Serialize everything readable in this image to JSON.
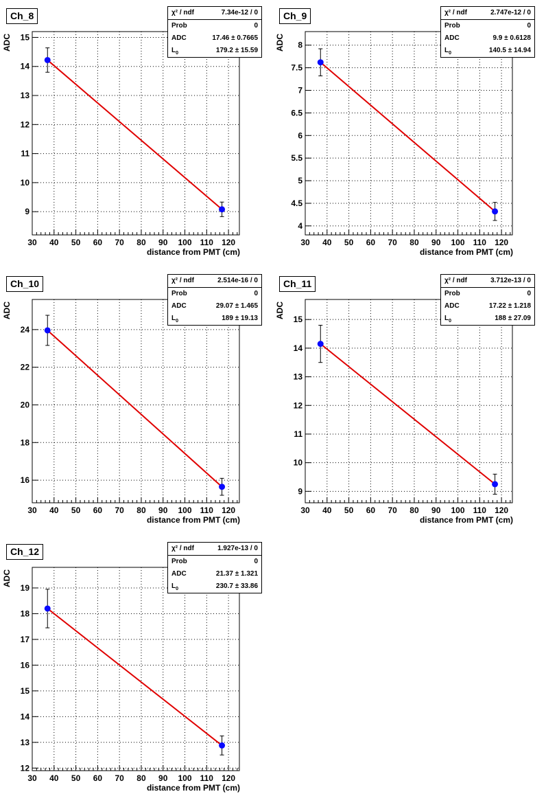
{
  "x_axis_label": "distance from PMT (cm)",
  "y_axis_label": "ADC",
  "stat_labels": {
    "chi2": "χ² / ndf",
    "prob": "Prob",
    "adc": "ADC",
    "l0": "L"
  },
  "chart_data": [
    {
      "type": "scatter",
      "title": "Ch_8",
      "xlim": [
        30,
        125
      ],
      "ylim": [
        8.2,
        15.2
      ],
      "x_ticks": [
        30,
        40,
        50,
        60,
        70,
        80,
        90,
        100,
        110,
        120
      ],
      "y_ticks": [
        9,
        10,
        11,
        12,
        13,
        14,
        15
      ],
      "points": [
        {
          "x": 37,
          "y": 14.22,
          "err": 0.42
        },
        {
          "x": 117,
          "y": 9.08,
          "err": 0.25
        }
      ],
      "fit": {
        "from": [
          37,
          14.22
        ],
        "to": [
          117,
          9.08
        ]
      },
      "stats": {
        "chi2": "7.34e-12 / 0",
        "prob": "0",
        "adc": "17.46 ± 0.7665",
        "l0": "179.2 ± 15.59"
      }
    },
    {
      "type": "scatter",
      "title": "Ch_9",
      "xlim": [
        30,
        125
      ],
      "ylim": [
        3.8,
        8.3
      ],
      "x_ticks": [
        30,
        40,
        50,
        60,
        70,
        80,
        90,
        100,
        110,
        120
      ],
      "y_ticks": [
        4,
        4.5,
        5,
        5.5,
        6,
        6.5,
        7,
        7.5,
        8
      ],
      "points": [
        {
          "x": 37,
          "y": 7.62,
          "err": 0.3
        },
        {
          "x": 117,
          "y": 4.32,
          "err": 0.2
        }
      ],
      "fit": {
        "from": [
          37,
          7.62
        ],
        "to": [
          117,
          4.32
        ]
      },
      "stats": {
        "chi2": "2.747e-12 / 0",
        "prob": "0",
        "adc": "9.9 ± 0.6128",
        "l0": "140.5 ± 14.94"
      }
    },
    {
      "type": "scatter",
      "title": "Ch_10",
      "xlim": [
        30,
        125
      ],
      "ylim": [
        14.8,
        25.6
      ],
      "x_ticks": [
        30,
        40,
        50,
        60,
        70,
        80,
        90,
        100,
        110,
        120
      ],
      "y_ticks": [
        16,
        18,
        20,
        22,
        24
      ],
      "points": [
        {
          "x": 37,
          "y": 23.96,
          "err": 0.8
        },
        {
          "x": 117,
          "y": 15.65,
          "err": 0.45
        }
      ],
      "fit": {
        "from": [
          37,
          23.96
        ],
        "to": [
          117,
          15.65
        ]
      },
      "stats": {
        "chi2": "2.514e-16 / 0",
        "prob": "0",
        "adc": "29.07 ± 1.465",
        "l0": "189 ± 19.13"
      }
    },
    {
      "type": "scatter",
      "title": "Ch_11",
      "xlim": [
        30,
        125
      ],
      "ylim": [
        8.6,
        15.7
      ],
      "x_ticks": [
        30,
        40,
        50,
        60,
        70,
        80,
        90,
        100,
        110,
        120
      ],
      "y_ticks": [
        9,
        10,
        11,
        12,
        13,
        14,
        15
      ],
      "points": [
        {
          "x": 37,
          "y": 14.15,
          "err": 0.65
        },
        {
          "x": 117,
          "y": 9.25,
          "err": 0.35
        }
      ],
      "fit": {
        "from": [
          37,
          14.15
        ],
        "to": [
          117,
          9.25
        ]
      },
      "stats": {
        "chi2": "3.712e-13 / 0",
        "prob": "0",
        "adc": "17.22 ± 1.218",
        "l0": "188 ± 27.09"
      }
    },
    {
      "type": "scatter",
      "title": "Ch_12",
      "xlim": [
        30,
        125
      ],
      "ylim": [
        11.9,
        19.8
      ],
      "x_ticks": [
        30,
        40,
        50,
        60,
        70,
        80,
        90,
        100,
        110,
        120
      ],
      "y_ticks": [
        12,
        13,
        14,
        15,
        16,
        17,
        18,
        19
      ],
      "points": [
        {
          "x": 37,
          "y": 18.2,
          "err": 0.75
        },
        {
          "x": 117,
          "y": 12.88,
          "err": 0.37
        }
      ],
      "fit": {
        "from": [
          37,
          18.2
        ],
        "to": [
          117,
          12.88
        ]
      },
      "stats": {
        "chi2": "1.927e-13 / 0",
        "prob": "0",
        "adc": "21.37 ± 1.321",
        "l0": "230.7 ± 33.86"
      }
    }
  ],
  "colors": {
    "fit": "#e00000",
    "marker": "#0a0aff",
    "grid": "#000000"
  }
}
